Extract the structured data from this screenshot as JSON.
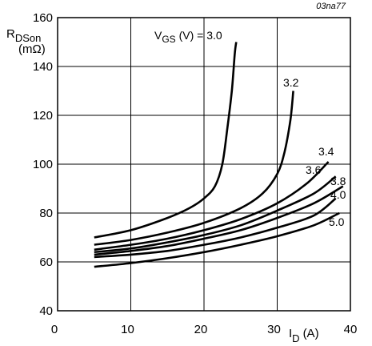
{
  "chart_data": {
    "type": "line",
    "figure_code": "03na77",
    "ylabel": {
      "main": "R",
      "sub": "DSon",
      "unit": "(mΩ)"
    },
    "xlabel": {
      "main": "I",
      "sub": "D",
      "unit": "(A)"
    },
    "xlim": [
      0,
      40
    ],
    "ylim": [
      40,
      160
    ],
    "x_ticks": [
      "0",
      "10",
      "20",
      "30",
      "40"
    ],
    "y_ticks": [
      "40",
      "60",
      "80",
      "100",
      "120",
      "140",
      "160"
    ],
    "grid": true,
    "vgs_label": {
      "main": "V",
      "sub": "GS",
      "rest": " (V) = 3.0"
    },
    "series": [
      {
        "name": "3.0",
        "x": [
          5,
          10,
          15,
          18,
          20,
          21.5,
          22.5,
          23.2,
          23.8,
          24.2,
          24.4
        ],
        "y": [
          70,
          73,
          78,
          82,
          86,
          91,
          100,
          115,
          130,
          145,
          150
        ]
      },
      {
        "name": "3.2",
        "x": [
          5,
          10,
          15,
          20,
          25,
          28,
          30,
          31,
          31.8,
          32.2
        ],
        "y": [
          67,
          69,
          72,
          76,
          82,
          88,
          96,
          105,
          118,
          130
        ]
      },
      {
        "name": "3.4",
        "x": [
          5,
          10,
          15,
          20,
          25,
          30,
          34,
          37
        ],
        "y": [
          65,
          67,
          69.5,
          73,
          77.5,
          84,
          92,
          101
        ]
      },
      {
        "name": "3.6",
        "x": [
          5,
          10,
          15,
          20,
          25,
          30,
          35,
          38
        ],
        "y": [
          64,
          65.5,
          68,
          71,
          75,
          81,
          88,
          95
        ]
      },
      {
        "name": "3.8",
        "x": [
          5,
          10,
          15,
          20,
          25,
          30,
          35,
          39
        ],
        "y": [
          63,
          64.5,
          66.5,
          69.5,
          73,
          78,
          84,
          91
        ]
      },
      {
        "name": "4.0",
        "x": [
          5,
          10,
          15,
          20,
          25,
          30,
          35,
          38
        ],
        "y": [
          62,
          63,
          64.5,
          67,
          70,
          74,
          79,
          86
        ]
      },
      {
        "name": "5.0",
        "x": [
          5,
          10,
          15,
          20,
          25,
          30,
          35,
          38.5
        ],
        "y": [
          58,
          59.5,
          61.5,
          64,
          67,
          70.5,
          75,
          80
        ]
      }
    ],
    "curve_labels": [
      "3.2",
      "3.4",
      "3.6",
      "3.8",
      "4.0",
      "5.0"
    ]
  }
}
